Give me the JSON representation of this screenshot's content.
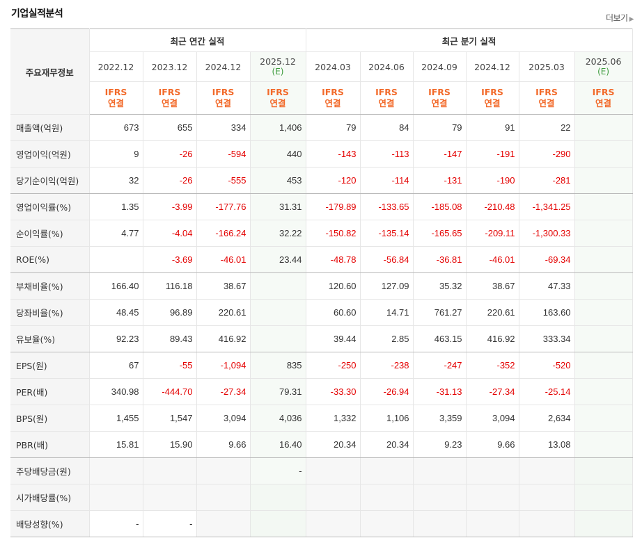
{
  "section_title": "기업실적분석",
  "more_label": "더보기",
  "header": {
    "row_label": "주요재무정보",
    "annual_group": "최근 연간 실적",
    "quarter_group": "최근 분기 실적",
    "ifrs_top": "IFRS",
    "ifrs_bottom": "연결",
    "estimate_mark": "(E)",
    "annual_periods": [
      "2022.12",
      "2023.12",
      "2024.12",
      "2025.12"
    ],
    "quarter_periods": [
      "2024.03",
      "2024.06",
      "2024.09",
      "2024.12",
      "2025.03",
      "2025.06"
    ]
  },
  "rows": [
    {
      "label": "매출액(억원)",
      "values": [
        "673",
        "655",
        "334",
        "1,406",
        "79",
        "84",
        "79",
        "91",
        "22",
        ""
      ]
    },
    {
      "label": "영업이익(억원)",
      "values": [
        "9",
        "-26",
        "-594",
        "440",
        "-143",
        "-113",
        "-147",
        "-191",
        "-290",
        ""
      ]
    },
    {
      "label": "당기순이익(억원)",
      "values": [
        "32",
        "-26",
        "-555",
        "453",
        "-120",
        "-114",
        "-131",
        "-190",
        "-281",
        ""
      ]
    },
    {
      "label": "영업이익률(%)",
      "values": [
        "1.35",
        "-3.99",
        "-177.76",
        "31.31",
        "-179.89",
        "-133.65",
        "-185.08",
        "-210.48",
        "-1,341.25",
        ""
      ]
    },
    {
      "label": "순이익률(%)",
      "values": [
        "4.77",
        "-4.04",
        "-166.24",
        "32.22",
        "-150.82",
        "-135.14",
        "-165.65",
        "-209.11",
        "-1,300.33",
        ""
      ]
    },
    {
      "label": "ROE(%)",
      "values": [
        "",
        "-3.69",
        "-46.01",
        "23.44",
        "-48.78",
        "-56.84",
        "-36.81",
        "-46.01",
        "-69.34",
        ""
      ]
    },
    {
      "label": "부채비율(%)",
      "values": [
        "166.40",
        "116.18",
        "38.67",
        "",
        "120.60",
        "127.09",
        "35.32",
        "38.67",
        "47.33",
        ""
      ]
    },
    {
      "label": "당좌비율(%)",
      "values": [
        "48.45",
        "96.89",
        "220.61",
        "",
        "60.60",
        "14.71",
        "761.27",
        "220.61",
        "163.60",
        ""
      ]
    },
    {
      "label": "유보율(%)",
      "values": [
        "92.23",
        "89.43",
        "416.92",
        "",
        "39.44",
        "2.85",
        "463.15",
        "416.92",
        "333.34",
        ""
      ]
    },
    {
      "label": "EPS(원)",
      "values": [
        "67",
        "-55",
        "-1,094",
        "835",
        "-250",
        "-238",
        "-247",
        "-352",
        "-520",
        ""
      ]
    },
    {
      "label": "PER(배)",
      "values": [
        "340.98",
        "-444.70",
        "-27.34",
        "79.31",
        "-33.30",
        "-26.94",
        "-31.13",
        "-27.34",
        "-25.14",
        ""
      ]
    },
    {
      "label": "BPS(원)",
      "values": [
        "1,455",
        "1,547",
        "3,094",
        "4,036",
        "1,332",
        "1,106",
        "3,359",
        "3,094",
        "2,634",
        ""
      ]
    },
    {
      "label": "PBR(배)",
      "values": [
        "15.81",
        "15.90",
        "9.66",
        "16.40",
        "20.34",
        "20.34",
        "9.23",
        "9.66",
        "13.08",
        ""
      ]
    },
    {
      "label": "주당배당금(원)",
      "values": [
        "",
        "",
        "",
        "-",
        "",
        "",
        "",
        "",
        "",
        ""
      ]
    },
    {
      "label": "시가배당률(%)",
      "values": [
        "",
        "",
        "",
        "",
        "",
        "",
        "",
        "",
        "",
        ""
      ]
    },
    {
      "label": "배당성향(%)",
      "values": [
        "-",
        "-",
        "",
        "",
        "",
        "",
        "",
        "",
        "",
        ""
      ]
    }
  ],
  "colors": {
    "negative": "#e40000",
    "ifrs": "#f26a2a",
    "estimate": "#3a9a3a"
  }
}
